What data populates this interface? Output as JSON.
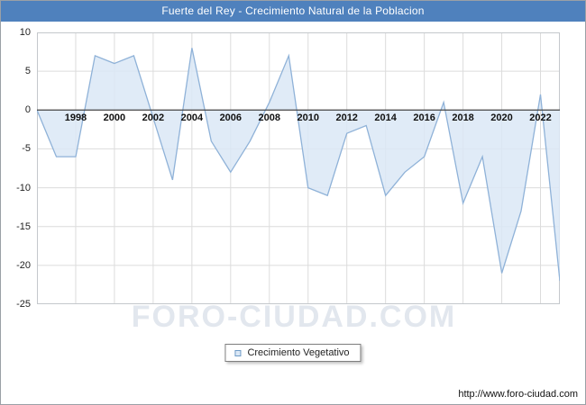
{
  "title_bar": {
    "title": "Fuerte del Rey - Crecimiento Natural de la Poblacion",
    "bg_color": "#4f81bd"
  },
  "watermark": "FORO-CIUDAD.COM",
  "legend": {
    "label": "Crecimiento Vegetativo"
  },
  "footer": {
    "url": "http://www.foro-ciudad.com"
  },
  "chart_data": {
    "type": "area",
    "title": "Fuerte del Rey - Crecimiento Natural de la Poblacion",
    "series_name": "Crecimiento Vegetativo",
    "x": [
      1996,
      1997,
      1998,
      1999,
      2000,
      2001,
      2002,
      2003,
      2004,
      2005,
      2006,
      2007,
      2008,
      2009,
      2010,
      2011,
      2012,
      2013,
      2014,
      2015,
      2016,
      2017,
      2018,
      2019,
      2020,
      2021,
      2022,
      2023
    ],
    "values": [
      0,
      -6,
      -6,
      7,
      6,
      7,
      -1,
      -9,
      8,
      -4,
      -8,
      -4,
      1,
      7,
      -10,
      -11,
      -3,
      -2,
      -11,
      -8,
      -6,
      1,
      -12,
      -6,
      -21,
      -13,
      2,
      -22
    ],
    "ylim": [
      -25,
      10
    ],
    "yticks": [
      10,
      5,
      0,
      -5,
      -10,
      -15,
      -20,
      -25
    ],
    "xticks": [
      1998,
      2000,
      2002,
      2004,
      2006,
      2008,
      2010,
      2012,
      2014,
      2016,
      2018,
      2020,
      2022
    ],
    "baseline": 0,
    "grid": true,
    "legend_position": "bottom",
    "line_color": "#8fb2d8",
    "fill_color": "#dbe8f6",
    "zero_axis_color": "#444444",
    "grid_color": "#dcdcdc"
  }
}
